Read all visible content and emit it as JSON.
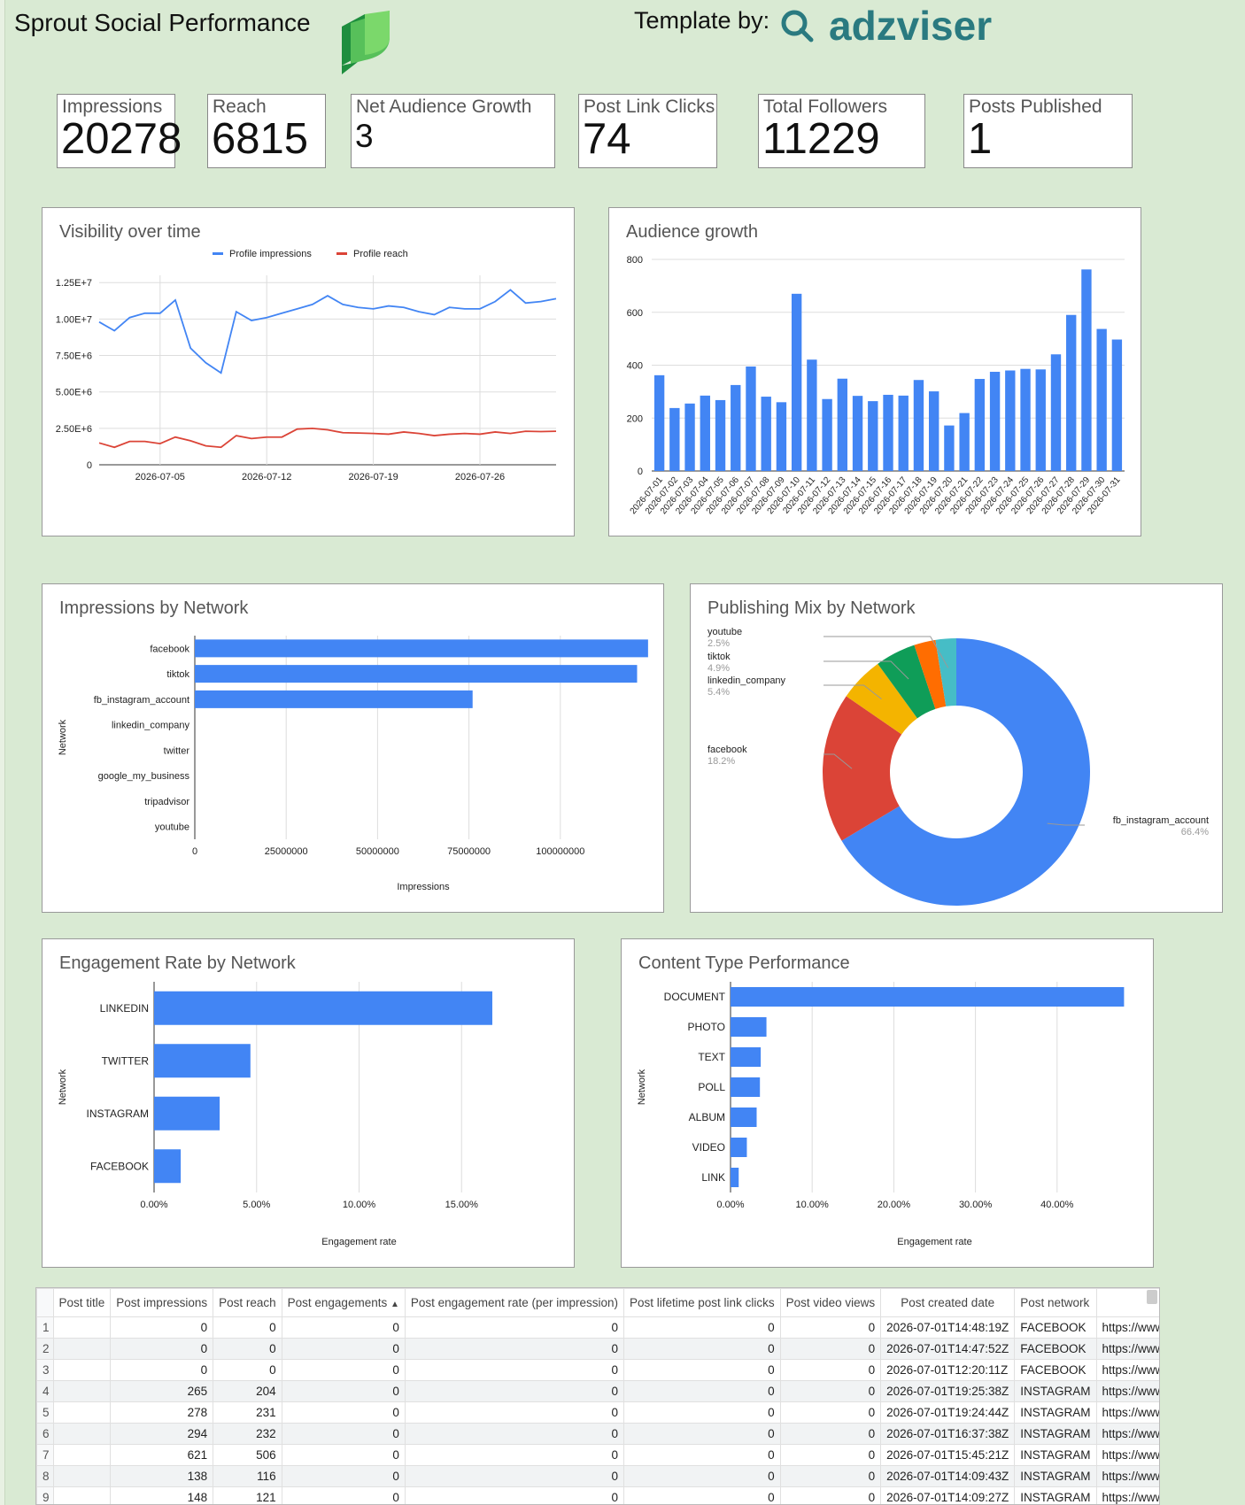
{
  "header": {
    "title": "Sprout Social Performance",
    "template_label": "Template by:",
    "brand": "adzviser"
  },
  "kpis": [
    {
      "label": "Impressions",
      "value": "20278"
    },
    {
      "label": "Reach",
      "value": "6815"
    },
    {
      "label": "Net Audience Growth",
      "value": "3"
    },
    {
      "label": "Post Link Clicks",
      "value": "74"
    },
    {
      "label": "Total Followers",
      "value": "11229"
    },
    {
      "label": "Posts Published",
      "value": "1"
    }
  ],
  "colors": {
    "blue": "#4285f4",
    "red": "#db4437",
    "yellow": "#f4b400",
    "green": "#0f9d58",
    "orange": "#ff6d01",
    "teal": "#46bdc6"
  },
  "chart_data": [
    {
      "type": "line",
      "title": "Visibility over time",
      "x_tick_labels": [
        "2026-07-05",
        "2026-07-12",
        "2026-07-19",
        "2026-07-26"
      ],
      "y_tick_labels": [
        "0",
        "2.50E+6",
        "5.00E+6",
        "7.50E+6",
        "1.00E+7",
        "1.25E+7"
      ],
      "ylim": [
        0,
        13000000
      ],
      "legend_position": "top",
      "x": [
        "2026-07-01",
        "2026-07-02",
        "2026-07-03",
        "2026-07-04",
        "2026-07-05",
        "2026-07-06",
        "2026-07-07",
        "2026-07-08",
        "2026-07-09",
        "2026-07-10",
        "2026-07-11",
        "2026-07-12",
        "2026-07-13",
        "2026-07-14",
        "2026-07-15",
        "2026-07-16",
        "2026-07-17",
        "2026-07-18",
        "2026-07-19",
        "2026-07-20",
        "2026-07-21",
        "2026-07-22",
        "2026-07-23",
        "2026-07-24",
        "2026-07-25",
        "2026-07-26",
        "2026-07-27",
        "2026-07-28",
        "2026-07-29",
        "2026-07-30",
        "2026-07-31"
      ],
      "series": [
        {
          "name": "Profile impressions",
          "color": "#4285f4",
          "values": [
            9800000,
            9200000,
            10100000,
            10400000,
            10400000,
            11300000,
            8000000,
            7000000,
            6300000,
            10500000,
            9900000,
            10100000,
            10400000,
            10700000,
            11000000,
            11600000,
            11000000,
            10800000,
            10700000,
            10900000,
            10800000,
            10500000,
            10300000,
            10800000,
            10700000,
            10700000,
            11200000,
            12000000,
            11100000,
            11200000,
            11400000
          ]
        },
        {
          "name": "Profile reach",
          "color": "#db4437",
          "values": [
            1500000,
            1200000,
            1600000,
            1600000,
            1450000,
            1900000,
            1650000,
            1300000,
            1200000,
            2000000,
            1800000,
            1900000,
            1900000,
            2450000,
            2500000,
            2400000,
            2200000,
            2180000,
            2150000,
            2100000,
            2250000,
            2150000,
            2000000,
            2100000,
            2150000,
            2100000,
            2250000,
            2150000,
            2300000,
            2280000,
            2300000
          ]
        }
      ]
    },
    {
      "type": "bar",
      "title": "Audience growth",
      "categories": [
        "2026-07-01",
        "2026-07-02",
        "2026-07-03",
        "2026-07-04",
        "2026-07-05",
        "2026-07-06",
        "2026-07-07",
        "2026-07-08",
        "2026-07-09",
        "2026-07-10",
        "2026-07-11",
        "2026-07-12",
        "2026-07-13",
        "2026-07-14",
        "2026-07-15",
        "2026-07-16",
        "2026-07-17",
        "2026-07-18",
        "2026-07-19",
        "2026-07-20",
        "2026-07-21",
        "2026-07-22",
        "2026-07-23",
        "2026-07-24",
        "2026-07-25",
        "2026-07-26",
        "2026-07-27",
        "2026-07-28",
        "2026-07-29",
        "2026-07-30",
        "2026-07-31"
      ],
      "values": [
        362,
        238,
        255,
        285,
        268,
        325,
        395,
        281,
        260,
        670,
        421,
        272,
        349,
        284,
        264,
        288,
        285,
        344,
        301,
        172,
        219,
        348,
        375,
        380,
        386,
        384,
        441,
        590,
        762,
        537,
        497
      ],
      "y_tick_labels": [
        "0",
        "200",
        "400",
        "600",
        "800"
      ],
      "ylim": [
        0,
        800
      ]
    },
    {
      "type": "bar",
      "orientation": "horizontal",
      "title": "Impressions by Network",
      "categories": [
        "facebook",
        "tiktok",
        "fb_instagram_account",
        "linkedin_company",
        "twitter",
        "google_my_business",
        "tripadvisor",
        "youtube"
      ],
      "values": [
        124000000,
        121000000,
        76000000,
        0,
        0,
        0,
        0,
        0
      ],
      "x_tick_labels": [
        "0",
        "25000000",
        "50000000",
        "75000000",
        "100000000"
      ],
      "xlim": [
        0,
        125000000
      ],
      "xlabel": "Impressions",
      "ylabel": "Network"
    },
    {
      "type": "pie",
      "donut": true,
      "title": "Publishing Mix by Network",
      "slices": [
        {
          "label": "fb_instagram_account",
          "percent_label": "66.4%",
          "value": 66.4,
          "color": "#4285f4"
        },
        {
          "label": "facebook",
          "percent_label": "18.2%",
          "value": 18.2,
          "color": "#db4437"
        },
        {
          "label": "linkedin_company",
          "percent_label": "5.4%",
          "value": 5.4,
          "color": "#f4b400"
        },
        {
          "label": "tiktok",
          "percent_label": "4.9%",
          "value": 4.9,
          "color": "#0f9d58"
        },
        {
          "label": "",
          "percent_label": "",
          "value": 2.6,
          "color": "#ff6d01"
        },
        {
          "label": "youtube",
          "percent_label": "2.5%",
          "value": 2.5,
          "color": "#46bdc6"
        }
      ]
    },
    {
      "type": "bar",
      "orientation": "horizontal",
      "title": "Engagement Rate by Network",
      "categories": [
        "LINKEDIN",
        "TWITTER",
        "INSTAGRAM",
        "FACEBOOK"
      ],
      "values": [
        16.5,
        4.7,
        3.2,
        1.3
      ],
      "x_tick_labels": [
        "0.00%",
        "5.00%",
        "10.00%",
        "15.00%"
      ],
      "xlim": [
        0,
        20
      ],
      "xlabel": "Engagement rate",
      "ylabel": "Network"
    },
    {
      "type": "bar",
      "orientation": "horizontal",
      "title": "Content Type Performance",
      "categories": [
        "DOCUMENT",
        "PHOTO",
        "TEXT",
        "POLL",
        "ALBUM",
        "VIDEO",
        "LINK"
      ],
      "values": [
        48.2,
        4.4,
        3.7,
        3.6,
        3.2,
        2.0,
        1.0
      ],
      "x_tick_labels": [
        "0.00%",
        "10.00%",
        "20.00%",
        "30.00%",
        "40.00%"
      ],
      "xlim": [
        0,
        50
      ],
      "xlabel": "Engagement rate",
      "ylabel": "Network"
    }
  ],
  "table": {
    "headers": [
      "Post title",
      "Post impressions",
      "Post reach",
      "Post engagements",
      "Post engagement rate (per impression)",
      "Post lifetime post link clicks",
      "Post video views",
      "Post created date",
      "Post network",
      ""
    ],
    "sort_indicator": "▲",
    "rows": [
      [
        "1",
        "",
        "0",
        "0",
        "0",
        "0",
        "0",
        "0",
        "2026-07-01T14:48:19Z",
        "FACEBOOK",
        "https://www.ins"
      ],
      [
        "2",
        "",
        "0",
        "0",
        "0",
        "0",
        "0",
        "0",
        "2026-07-01T14:47:52Z",
        "FACEBOOK",
        "https://www.ins"
      ],
      [
        "3",
        "",
        "0",
        "0",
        "0",
        "0",
        "0",
        "0",
        "2026-07-01T12:20:11Z",
        "FACEBOOK",
        "https://www.ins"
      ],
      [
        "4",
        "",
        "265",
        "204",
        "0",
        "0",
        "0",
        "0",
        "2026-07-01T19:25:38Z",
        "INSTAGRAM",
        "https://www.fac"
      ],
      [
        "5",
        "",
        "278",
        "231",
        "0",
        "0",
        "0",
        "0",
        "2026-07-01T19:24:44Z",
        "INSTAGRAM",
        "https://www.ins"
      ],
      [
        "6",
        "",
        "294",
        "232",
        "0",
        "0",
        "0",
        "0",
        "2026-07-01T16:37:38Z",
        "INSTAGRAM",
        "https://www.ins"
      ],
      [
        "7",
        "",
        "621",
        "506",
        "0",
        "0",
        "0",
        "0",
        "2026-07-01T15:45:21Z",
        "INSTAGRAM",
        "https://www.fac"
      ],
      [
        "8",
        "",
        "138",
        "116",
        "0",
        "0",
        "0",
        "0",
        "2026-07-01T14:09:43Z",
        "INSTAGRAM",
        "https://www.fac"
      ],
      [
        "9",
        "",
        "148",
        "121",
        "0",
        "0",
        "0",
        "0",
        "2026-07-01T14:09:27Z",
        "INSTAGRAM",
        "https://www.ins"
      ]
    ]
  }
}
